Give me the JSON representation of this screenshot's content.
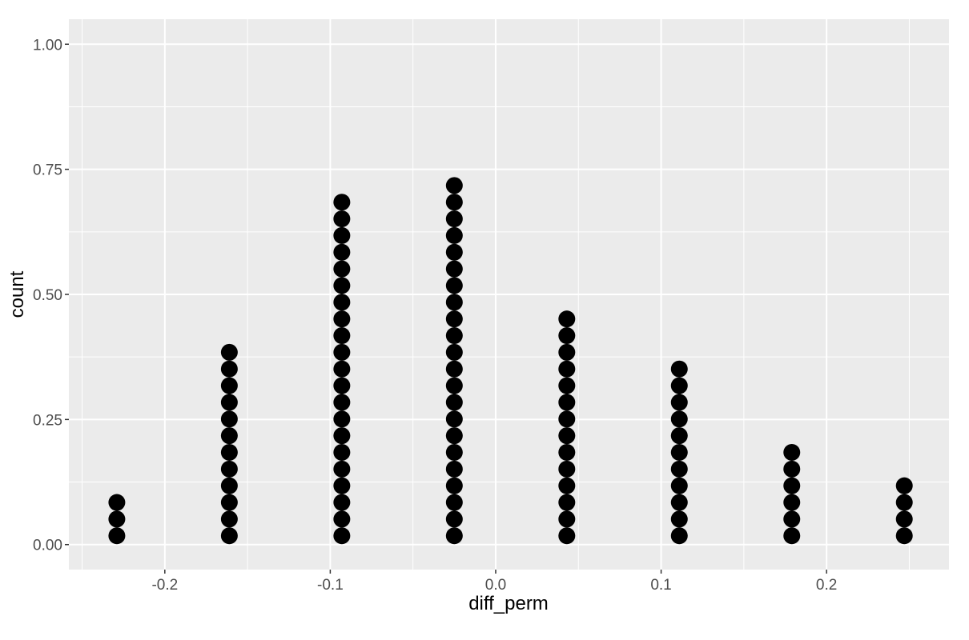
{
  "chart_data": {
    "type": "dotplot",
    "xlabel": "diff_perm",
    "ylabel": "count",
    "xlim": [
      -0.258,
      0.274
    ],
    "ylim": [
      -0.05,
      1.05
    ],
    "x_ticks": [
      -0.2,
      -0.1,
      0.0,
      0.1,
      0.2
    ],
    "x_tick_labels": [
      "-0.2",
      "-0.1",
      "0.0",
      "0.1",
      "0.2"
    ],
    "y_ticks": [
      0.0,
      0.25,
      0.5,
      0.75,
      1.0
    ],
    "y_tick_labels": [
      "0.00",
      "0.25",
      "0.50",
      "0.75",
      "1.00"
    ],
    "grid": true,
    "legend": "none",
    "dot_color": "#000000",
    "panel_background": "#ebebeb",
    "grid_color": "#ffffff",
    "stacks": [
      {
        "x": -0.229,
        "count": 3
      },
      {
        "x": -0.161,
        "count": 12
      },
      {
        "x": -0.093,
        "count": 21
      },
      {
        "x": -0.025,
        "count": 22
      },
      {
        "x": 0.043,
        "count": 14
      },
      {
        "x": 0.111,
        "count": 11
      },
      {
        "x": 0.179,
        "count": 6
      },
      {
        "x": 0.247,
        "count": 4
      }
    ]
  }
}
